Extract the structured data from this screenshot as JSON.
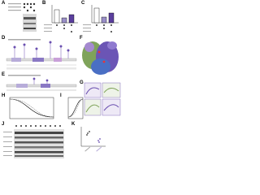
{
  "figure": {
    "panels": [
      {
        "label": "A"
      },
      {
        "label": "B"
      },
      {
        "label": "C"
      },
      {
        "label": "D"
      },
      {
        "label": "E"
      },
      {
        "label": "F"
      },
      {
        "label": "G"
      },
      {
        "label": "H"
      },
      {
        "label": "I"
      },
      {
        "label": "J"
      },
      {
        "label": "K"
      }
    ]
  }
}
